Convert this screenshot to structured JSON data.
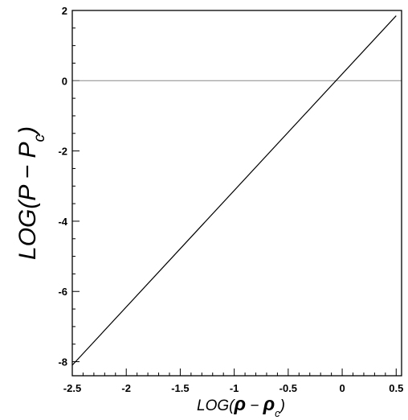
{
  "chart_data": {
    "type": "line",
    "title": "",
    "xlabel": {
      "prefix": "LOG(",
      "symbol": "ρ",
      "minus": " − ",
      "symbol2": "ρ",
      "subscript": "c",
      "suffix": ")"
    },
    "ylabel": {
      "prefix": "LOG(",
      "symbol": "P",
      "minus": " − ",
      "symbol2": "P",
      "subscript": "c",
      "suffix": ")"
    },
    "xlim": [
      -2.5,
      0.55
    ],
    "ylim": [
      -8.4,
      2.0
    ],
    "xticks": [
      -2.5,
      -2,
      -1.5,
      -1,
      -0.5,
      0,
      0.5
    ],
    "xtick_labels": [
      "-2.5",
      "-2",
      "-1.5",
      "-1",
      "-0.5",
      "0",
      "0.5"
    ],
    "yticks": [
      -8,
      -6,
      -4,
      -2,
      0,
      2
    ],
    "ytick_labels": [
      "-8",
      "-6",
      "-4",
      "-2",
      "0",
      "2"
    ],
    "x_minor_step": 0.1,
    "y_minor_step": 0.5,
    "grid": false,
    "reference_lines": [
      {
        "orientation": "horizontal",
        "y": 0
      }
    ],
    "series": [
      {
        "x": [
          -2.5,
          0.5
        ],
        "y": [
          -8.1,
          1.85
        ]
      }
    ],
    "colors": {
      "line": "#000000",
      "reference": "#888888",
      "axes": "#000000"
    }
  }
}
